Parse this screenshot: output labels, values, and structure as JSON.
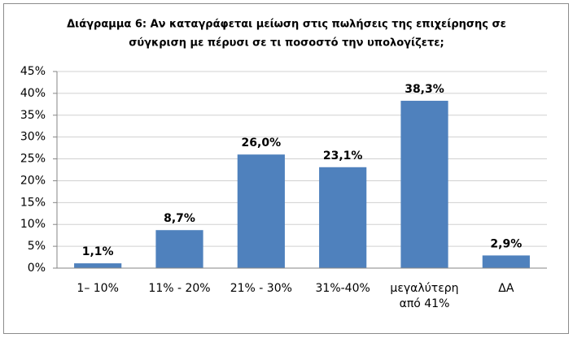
{
  "chart_data": {
    "type": "bar",
    "title": [
      "Διάγραμμα 6: Αν καταγράφεται μείωση στις πωλήσεις της επιχείρησης σε",
      "σύγκριση με πέρυσι σε τι ποσοστό την υπολογίζετε;"
    ],
    "categories": [
      "1– 10%",
      "11% - 20%",
      "21% - 30%",
      "31%-40%",
      "μεγαλύτερη από 41%",
      "ΔΑ"
    ],
    "values": [
      1.1,
      8.7,
      26.0,
      23.1,
      38.3,
      2.9
    ],
    "value_labels": [
      "1,1%",
      "8,7%",
      "26,0%",
      "23,1%",
      "38,3%",
      "2,9%"
    ],
    "color": "#4f81bd",
    "ylim": [
      0,
      45
    ],
    "yticks": [
      {
        "value": 0,
        "label": "0%"
      },
      {
        "value": 5,
        "label": "5%"
      },
      {
        "value": 10,
        "label": "10%"
      },
      {
        "value": 15,
        "label": "15%"
      },
      {
        "value": 20,
        "label": "20%"
      },
      {
        "value": 25,
        "label": "25%"
      },
      {
        "value": 30,
        "label": "30%"
      },
      {
        "value": 35,
        "label": "35%"
      },
      {
        "value": 40,
        "label": "40%"
      },
      {
        "value": 45,
        "label": "45%"
      }
    ],
    "grid": true
  }
}
